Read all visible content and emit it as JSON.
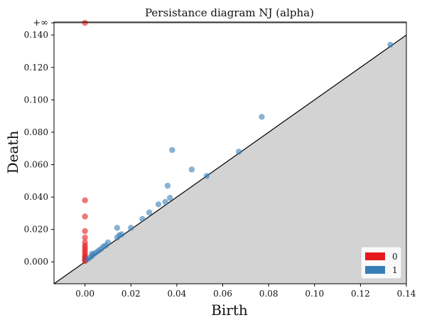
{
  "chart_data": {
    "type": "scatter",
    "title": "Persistance diagram NJ (alpha)",
    "xlabel": "Birth",
    "ylabel": "Death",
    "xlim": [
      -0.0135,
      0.14
    ],
    "ylim": [
      -0.0135,
      0.148
    ],
    "x_ticks": [
      0.0,
      0.02,
      0.04,
      0.06,
      0.08,
      0.1,
      0.12,
      0.14
    ],
    "x_tick_labels": [
      "0.00",
      "0.02",
      "0.04",
      "0.06",
      "0.08",
      "0.10",
      "0.12",
      "0.14"
    ],
    "y_ticks": [
      0.0,
      0.02,
      0.04,
      0.06,
      0.08,
      0.1,
      0.12,
      0.14
    ],
    "y_tick_labels": [
      "0.000",
      "0.020",
      "0.040",
      "0.060",
      "0.080",
      "0.100",
      "0.120",
      "0.140"
    ],
    "infinity_label": "+∞",
    "infinity_level": 0.1475,
    "diagonal": true,
    "grid": false,
    "legend_position": "bottom-right",
    "series": [
      {
        "name": "0",
        "color": "#e41a1c",
        "points": [
          [
            0.0,
            0.1475
          ],
          [
            0.0,
            0.038
          ],
          [
            0.0,
            0.028
          ],
          [
            0.0,
            0.019
          ],
          [
            0.0,
            0.015
          ],
          [
            0.0,
            0.012
          ],
          [
            0.0,
            0.01
          ],
          [
            0.0,
            0.0085
          ],
          [
            0.0,
            0.007
          ],
          [
            0.0,
            0.0055
          ],
          [
            0.0,
            0.004
          ],
          [
            0.0,
            0.003
          ],
          [
            0.0,
            0.002
          ],
          [
            0.0,
            0.001
          ],
          [
            0.0,
            0.0005
          ]
        ]
      },
      {
        "name": "1",
        "color": "#377eb8",
        "points": [
          [
            0.133,
            0.134
          ],
          [
            0.077,
            0.0895
          ],
          [
            0.067,
            0.068
          ],
          [
            0.038,
            0.069
          ],
          [
            0.053,
            0.053
          ],
          [
            0.0465,
            0.057
          ],
          [
            0.036,
            0.047
          ],
          [
            0.037,
            0.0395
          ],
          [
            0.035,
            0.037
          ],
          [
            0.032,
            0.0355
          ],
          [
            0.028,
            0.0305
          ],
          [
            0.025,
            0.0265
          ],
          [
            0.02,
            0.021
          ],
          [
            0.014,
            0.021
          ],
          [
            0.016,
            0.017
          ],
          [
            0.015,
            0.0165
          ],
          [
            0.014,
            0.015
          ],
          [
            0.01,
            0.012
          ],
          [
            0.009,
            0.01
          ],
          [
            0.008,
            0.0095
          ],
          [
            0.007,
            0.008
          ],
          [
            0.006,
            0.007
          ],
          [
            0.005,
            0.006
          ],
          [
            0.004,
            0.005
          ],
          [
            0.003,
            0.005
          ],
          [
            0.003,
            0.0035
          ],
          [
            0.002,
            0.0025
          ],
          [
            0.001,
            0.0015
          ]
        ]
      }
    ]
  }
}
